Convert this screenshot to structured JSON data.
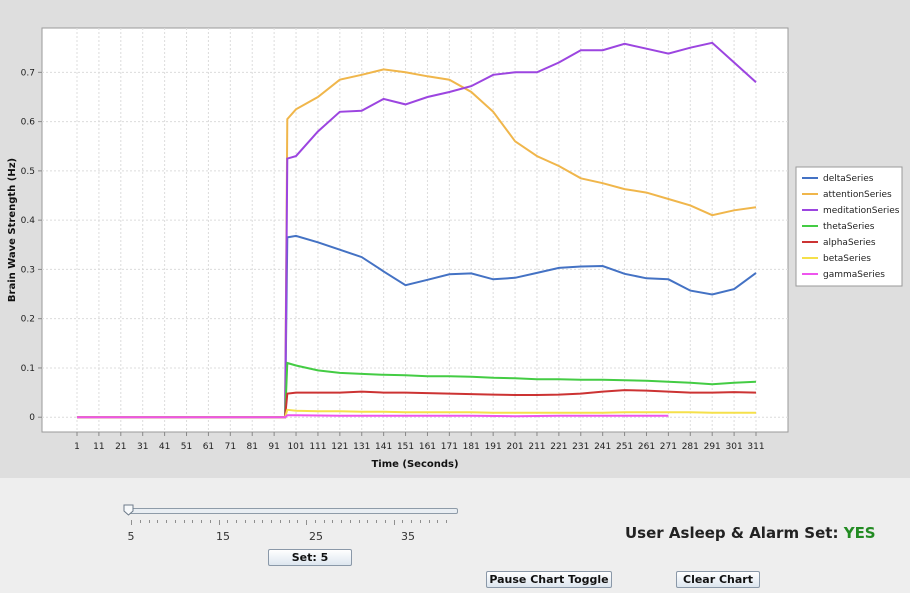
{
  "chart_data": {
    "type": "line",
    "title": "",
    "xlabel": "Time (Seconds)",
    "ylabel": "Brain Wave Strength (Hz)",
    "xlim": [
      1,
      311
    ],
    "ylim": [
      -0.03,
      0.79
    ],
    "x_ticks": [
      "1",
      "11",
      "21",
      "31",
      "41",
      "51",
      "61",
      "71",
      "81",
      "91",
      "101",
      "111",
      "121",
      "131",
      "141",
      "151",
      "161",
      "171",
      "181",
      "191",
      "201",
      "211",
      "221",
      "231",
      "241",
      "251",
      "261",
      "271",
      "281",
      "291",
      "301",
      "311"
    ],
    "y_ticks": [
      "0",
      "0.1",
      "0.2",
      "0.3",
      "0.4",
      "0.5",
      "0.6",
      "0.7"
    ],
    "grid": true,
    "legend_position": "right",
    "series": [
      {
        "name": "deltaSeries",
        "color": "#4472c4",
        "points": [
          [
            1,
            0
          ],
          [
            96,
            0
          ],
          [
            97,
            0.365
          ],
          [
            101,
            0.368
          ],
          [
            111,
            0.355
          ],
          [
            121,
            0.34
          ],
          [
            131,
            0.325
          ],
          [
            141,
            0.296
          ],
          [
            151,
            0.268
          ],
          [
            161,
            0.279
          ],
          [
            171,
            0.29
          ],
          [
            181,
            0.292
          ],
          [
            191,
            0.28
          ],
          [
            201,
            0.283
          ],
          [
            211,
            0.293
          ],
          [
            221,
            0.303
          ],
          [
            231,
            0.306
          ],
          [
            241,
            0.307
          ],
          [
            251,
            0.291
          ],
          [
            261,
            0.282
          ],
          [
            271,
            0.28
          ],
          [
            281,
            0.257
          ],
          [
            291,
            0.249
          ],
          [
            301,
            0.26
          ],
          [
            311,
            0.293
          ]
        ]
      },
      {
        "name": "attentionSeries",
        "color": "#f0b64b",
        "points": [
          [
            1,
            0
          ],
          [
            96,
            0
          ],
          [
            97,
            0.605
          ],
          [
            101,
            0.625
          ],
          [
            111,
            0.65
          ],
          [
            121,
            0.685
          ],
          [
            131,
            0.695
          ],
          [
            141,
            0.706
          ],
          [
            151,
            0.7
          ],
          [
            161,
            0.692
          ],
          [
            171,
            0.685
          ],
          [
            181,
            0.66
          ],
          [
            191,
            0.62
          ],
          [
            201,
            0.56
          ],
          [
            211,
            0.53
          ],
          [
            221,
            0.51
          ],
          [
            231,
            0.485
          ],
          [
            241,
            0.475
          ],
          [
            251,
            0.463
          ],
          [
            261,
            0.456
          ],
          [
            271,
            0.443
          ],
          [
            281,
            0.43
          ],
          [
            291,
            0.41
          ],
          [
            301,
            0.42
          ],
          [
            311,
            0.426
          ]
        ]
      },
      {
        "name": "meditationSeries",
        "color": "#9c45e0",
        "points": [
          [
            1,
            0
          ],
          [
            96,
            0
          ],
          [
            97,
            0.525
          ],
          [
            101,
            0.53
          ],
          [
            111,
            0.58
          ],
          [
            121,
            0.62
          ],
          [
            131,
            0.622
          ],
          [
            141,
            0.646
          ],
          [
            151,
            0.635
          ],
          [
            161,
            0.65
          ],
          [
            171,
            0.66
          ],
          [
            181,
            0.672
          ],
          [
            191,
            0.695
          ],
          [
            201,
            0.7
          ],
          [
            211,
            0.7
          ],
          [
            221,
            0.72
          ],
          [
            231,
            0.745
          ],
          [
            241,
            0.745
          ],
          [
            251,
            0.758
          ],
          [
            261,
            0.748
          ],
          [
            271,
            0.738
          ],
          [
            281,
            0.75
          ],
          [
            291,
            0.76
          ],
          [
            301,
            0.72
          ],
          [
            311,
            0.68
          ]
        ]
      },
      {
        "name": "thetaSeries",
        "color": "#44cc44",
        "points": [
          [
            1,
            0
          ],
          [
            96,
            0
          ],
          [
            97,
            0.11
          ],
          [
            101,
            0.105
          ],
          [
            111,
            0.095
          ],
          [
            121,
            0.09
          ],
          [
            131,
            0.088
          ],
          [
            141,
            0.086
          ],
          [
            151,
            0.085
          ],
          [
            161,
            0.083
          ],
          [
            171,
            0.083
          ],
          [
            181,
            0.082
          ],
          [
            191,
            0.08
          ],
          [
            201,
            0.079
          ],
          [
            211,
            0.077
          ],
          [
            221,
            0.077
          ],
          [
            231,
            0.076
          ],
          [
            241,
            0.076
          ],
          [
            251,
            0.075
          ],
          [
            261,
            0.074
          ],
          [
            271,
            0.072
          ],
          [
            281,
            0.07
          ],
          [
            291,
            0.067
          ],
          [
            301,
            0.07
          ],
          [
            311,
            0.072
          ]
        ]
      },
      {
        "name": "alphaSeries",
        "color": "#cc3333",
        "points": [
          [
            1,
            0
          ],
          [
            96,
            0
          ],
          [
            97,
            0.048
          ],
          [
            101,
            0.05
          ],
          [
            111,
            0.05
          ],
          [
            121,
            0.05
          ],
          [
            131,
            0.052
          ],
          [
            141,
            0.05
          ],
          [
            151,
            0.05
          ],
          [
            161,
            0.049
          ],
          [
            171,
            0.048
          ],
          [
            181,
            0.047
          ],
          [
            191,
            0.046
          ],
          [
            201,
            0.045
          ],
          [
            211,
            0.045
          ],
          [
            221,
            0.046
          ],
          [
            231,
            0.048
          ],
          [
            241,
            0.052
          ],
          [
            251,
            0.055
          ],
          [
            261,
            0.054
          ],
          [
            271,
            0.052
          ],
          [
            281,
            0.05
          ],
          [
            291,
            0.05
          ],
          [
            301,
            0.051
          ],
          [
            311,
            0.05
          ]
        ]
      },
      {
        "name": "betaSeries",
        "color": "#f5e04a",
        "points": [
          [
            1,
            0
          ],
          [
            96,
            0
          ],
          [
            97,
            0.015
          ],
          [
            101,
            0.013
          ],
          [
            111,
            0.012
          ],
          [
            121,
            0.012
          ],
          [
            131,
            0.011
          ],
          [
            141,
            0.011
          ],
          [
            151,
            0.01
          ],
          [
            161,
            0.01
          ],
          [
            171,
            0.01
          ],
          [
            181,
            0.01
          ],
          [
            191,
            0.009
          ],
          [
            201,
            0.009
          ],
          [
            211,
            0.009
          ],
          [
            221,
            0.009
          ],
          [
            231,
            0.009
          ],
          [
            241,
            0.009
          ],
          [
            251,
            0.01
          ],
          [
            261,
            0.01
          ],
          [
            271,
            0.01
          ],
          [
            281,
            0.01
          ],
          [
            291,
            0.009
          ],
          [
            301,
            0.009
          ],
          [
            311,
            0.009
          ]
        ]
      },
      {
        "name": "gammaSeries",
        "color": "#ee55ee",
        "points": [
          [
            1,
            0
          ],
          [
            96,
            0
          ],
          [
            97,
            0.004
          ],
          [
            101,
            0.004
          ],
          [
            121,
            0.003
          ],
          [
            141,
            0.003
          ],
          [
            161,
            0.003
          ],
          [
            181,
            0.003
          ],
          [
            201,
            0.002
          ],
          [
            221,
            0.003
          ],
          [
            241,
            0.003
          ],
          [
            261,
            0.003
          ],
          [
            271,
            0.003
          ]
        ]
      }
    ]
  },
  "slider": {
    "value": 5,
    "min": 5,
    "max": 41,
    "labels": [
      "5",
      "15",
      "25",
      "35"
    ]
  },
  "buttons": {
    "set_label": "Set: 5",
    "pause_label": "Pause Chart Toggle",
    "clear_label": "Clear Chart"
  },
  "status": {
    "label": "User Asleep & Alarm Set:",
    "value": "YES",
    "value_color": "#228b22"
  }
}
